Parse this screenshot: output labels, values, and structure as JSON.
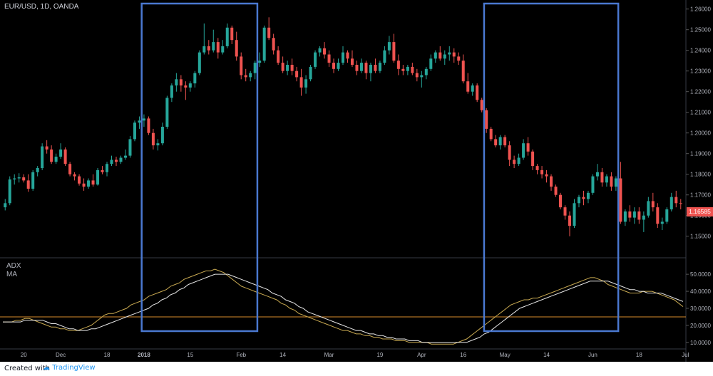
{
  "chart_data": {
    "type": "candlestick",
    "title": "EUR/USD, 1D, OANDA",
    "price_axis": {
      "range": [
        1.143,
        1.263
      ],
      "ticks": [
        "1.26000",
        "1.25000",
        "1.24000",
        "1.23000",
        "1.22000",
        "1.21000",
        "1.20000",
        "1.19000",
        "1.18000",
        "1.17000",
        "1.16000",
        "1.15000"
      ],
      "last_price": "1.16585"
    },
    "indicator": {
      "labels": [
        "ADX",
        "MA"
      ],
      "range": [
        7,
        58
      ],
      "ticks": [
        "50.0000",
        "40.0000",
        "30.0000",
        "20.0000",
        "10.0000"
      ],
      "reference_level": 25,
      "adx": [
        22,
        22,
        22,
        23,
        23,
        24,
        24,
        23,
        22,
        21,
        20,
        19,
        19,
        18,
        18,
        17,
        17,
        17,
        18,
        19,
        20,
        22,
        24,
        26,
        27,
        27,
        28,
        29,
        30,
        32,
        33,
        34,
        35,
        37,
        38,
        39,
        40,
        41,
        43,
        44,
        45,
        47,
        48,
        49,
        50,
        51,
        52,
        52,
        53,
        52,
        51,
        49,
        47,
        45,
        43,
        42,
        41,
        40,
        39,
        38,
        37,
        36,
        35,
        33,
        32,
        30,
        29,
        27,
        26,
        25,
        24,
        23,
        22,
        21,
        20,
        19,
        18,
        17,
        17,
        16,
        15,
        15,
        14,
        14,
        13,
        13,
        12,
        12,
        12,
        11,
        11,
        11,
        10,
        10,
        10,
        10,
        10,
        9,
        9,
        9,
        9,
        9,
        9,
        10,
        11,
        12,
        14,
        16,
        18,
        20,
        22,
        24,
        26,
        28,
        30,
        32,
        33,
        34,
        35,
        35,
        36,
        36,
        37,
        38,
        39,
        40,
        41,
        42,
        43,
        44,
        45,
        46,
        47,
        48,
        48,
        47,
        46,
        44,
        43,
        42,
        41,
        40,
        39,
        39,
        39,
        40,
        40,
        40,
        39,
        38,
        37,
        36,
        35,
        33,
        31
      ],
      "ma": [
        22,
        22,
        22,
        22,
        22,
        23,
        23,
        23,
        23,
        23,
        22,
        21,
        21,
        20,
        19,
        18,
        18,
        17,
        17,
        17,
        18,
        18,
        19,
        20,
        21,
        22,
        23,
        24,
        25,
        26,
        27,
        28,
        29,
        30,
        32,
        33,
        35,
        36,
        38,
        39,
        41,
        42,
        44,
        45,
        46,
        47,
        48,
        49,
        50,
        50,
        50,
        50,
        49,
        48,
        47,
        46,
        45,
        44,
        43,
        42,
        41,
        39,
        38,
        37,
        35,
        34,
        33,
        31,
        30,
        28,
        27,
        26,
        25,
        24,
        23,
        22,
        21,
        20,
        19,
        18,
        17,
        17,
        16,
        15,
        15,
        14,
        14,
        13,
        13,
        12,
        12,
        12,
        11,
        11,
        11,
        10,
        10,
        10,
        10,
        10,
        10,
        10,
        10,
        10,
        10,
        10,
        11,
        12,
        13,
        15,
        16,
        18,
        20,
        22,
        24,
        26,
        28,
        30,
        31,
        32,
        33,
        34,
        35,
        36,
        37,
        38,
        39,
        40,
        41,
        42,
        43,
        44,
        45,
        46,
        46,
        46,
        46,
        46,
        45,
        44,
        43,
        42,
        41,
        41,
        40,
        40,
        39,
        39,
        39,
        39,
        38,
        37,
        36,
        35,
        34
      ]
    },
    "x_axis": {
      "ticks": [
        "20",
        "Dec",
        "18",
        "2018",
        "15",
        "Feb",
        "14",
        "Mar",
        "19",
        "Apr",
        "16",
        "May",
        "14",
        "Jun",
        "18",
        "Jul"
      ]
    },
    "series": [
      {
        "values": [
          [
            1.164,
            1.168,
            1.1625,
            1.166
          ],
          [
            1.166,
            1.179,
            1.165,
            1.1775
          ],
          [
            1.1775,
            1.18,
            1.175,
            1.178
          ],
          [
            1.178,
            1.1805,
            1.176,
            1.1785
          ],
          [
            1.1785,
            1.18,
            1.176,
            1.177
          ],
          [
            1.177,
            1.18,
            1.1715,
            1.173
          ],
          [
            1.173,
            1.182,
            1.172,
            1.181
          ],
          [
            1.181,
            1.184,
            1.179,
            1.183
          ],
          [
            1.183,
            1.195,
            1.182,
            1.1935
          ],
          [
            1.1935,
            1.1965,
            1.19,
            1.192
          ],
          [
            1.192,
            1.194,
            1.185,
            1.186
          ],
          [
            1.186,
            1.19,
            1.185,
            1.1885
          ],
          [
            1.1885,
            1.195,
            1.1875,
            1.192
          ],
          [
            1.192,
            1.193,
            1.184,
            1.185
          ],
          [
            1.185,
            1.186,
            1.179,
            1.18
          ],
          [
            1.18,
            1.181,
            1.177,
            1.179
          ],
          [
            1.179,
            1.18,
            1.1745,
            1.1755
          ],
          [
            1.1755,
            1.178,
            1.172,
            1.174
          ],
          [
            1.174,
            1.178,
            1.173,
            1.177
          ],
          [
            1.177,
            1.18,
            1.174,
            1.175
          ],
          [
            1.175,
            1.183,
            1.1745,
            1.182
          ],
          [
            1.182,
            1.184,
            1.18,
            1.181
          ],
          [
            1.181,
            1.186,
            1.179,
            1.185
          ],
          [
            1.185,
            1.189,
            1.184,
            1.187
          ],
          [
            1.187,
            1.1885,
            1.184,
            1.186
          ],
          [
            1.186,
            1.189,
            1.185,
            1.188
          ],
          [
            1.188,
            1.192,
            1.187,
            1.189
          ],
          [
            1.189,
            1.1985,
            1.188,
            1.197
          ],
          [
            1.197,
            1.206,
            1.196,
            1.205
          ],
          [
            1.205,
            1.208,
            1.202,
            1.206
          ],
          [
            1.206,
            1.209,
            1.203,
            1.207
          ],
          [
            1.207,
            1.208,
            1.199,
            1.2
          ],
          [
            1.2,
            1.202,
            1.192,
            1.194
          ],
          [
            1.194,
            1.197,
            1.1915,
            1.195
          ],
          [
            1.195,
            1.205,
            1.194,
            1.203
          ],
          [
            1.203,
            1.218,
            1.202,
            1.217
          ],
          [
            1.217,
            1.224,
            1.215,
            1.223
          ],
          [
            1.223,
            1.229,
            1.22,
            1.226
          ],
          [
            1.226,
            1.228,
            1.22,
            1.223
          ],
          [
            1.223,
            1.225,
            1.216,
            1.222
          ],
          [
            1.222,
            1.225,
            1.22,
            1.224
          ],
          [
            1.224,
            1.23,
            1.222,
            1.229
          ],
          [
            1.229,
            1.24,
            1.228,
            1.239
          ],
          [
            1.239,
            1.253,
            1.238,
            1.242
          ],
          [
            1.242,
            1.245,
            1.238,
            1.24
          ],
          [
            1.24,
            1.25,
            1.239,
            1.244
          ],
          [
            1.244,
            1.246,
            1.236,
            1.239
          ],
          [
            1.239,
            1.245,
            1.238,
            1.242
          ],
          [
            1.242,
            1.253,
            1.241,
            1.251
          ],
          [
            1.251,
            1.252,
            1.243,
            1.245
          ],
          [
            1.245,
            1.249,
            1.235,
            1.237
          ],
          [
            1.237,
            1.239,
            1.226,
            1.228
          ],
          [
            1.228,
            1.231,
            1.225,
            1.227
          ],
          [
            1.227,
            1.23,
            1.225,
            1.229
          ],
          [
            1.229,
            1.235,
            1.226,
            1.234
          ],
          [
            1.234,
            1.239,
            1.232,
            1.235
          ],
          [
            1.235,
            1.252,
            1.234,
            1.251
          ],
          [
            1.251,
            1.256,
            1.245,
            1.246
          ],
          [
            1.246,
            1.248,
            1.238,
            1.24
          ],
          [
            1.24,
            1.242,
            1.233,
            1.234
          ],
          [
            1.234,
            1.237,
            1.229,
            1.23
          ],
          [
            1.23,
            1.235,
            1.228,
            1.233
          ],
          [
            1.233,
            1.236,
            1.228,
            1.23
          ],
          [
            1.23,
            1.232,
            1.225,
            1.227
          ],
          [
            1.227,
            1.231,
            1.218,
            1.222
          ],
          [
            1.222,
            1.228,
            1.219,
            1.226
          ],
          [
            1.226,
            1.233,
            1.225,
            1.232
          ],
          [
            1.232,
            1.24,
            1.231,
            1.239
          ],
          [
            1.239,
            1.242,
            1.237,
            1.241
          ],
          [
            1.241,
            1.244,
            1.236,
            1.238
          ],
          [
            1.238,
            1.24,
            1.232,
            1.234
          ],
          [
            1.234,
            1.236,
            1.229,
            1.231
          ],
          [
            1.231,
            1.236,
            1.23,
            1.234
          ],
          [
            1.234,
            1.242,
            1.233,
            1.239
          ],
          [
            1.239,
            1.24,
            1.234,
            1.236
          ],
          [
            1.236,
            1.24,
            1.232,
            1.233
          ],
          [
            1.233,
            1.235,
            1.228,
            1.23
          ],
          [
            1.23,
            1.236,
            1.229,
            1.234
          ],
          [
            1.234,
            1.235,
            1.226,
            1.229
          ],
          [
            1.229,
            1.234,
            1.225,
            1.233
          ],
          [
            1.233,
            1.236,
            1.229,
            1.23
          ],
          [
            1.23,
            1.235,
            1.229,
            1.234
          ],
          [
            1.234,
            1.242,
            1.233,
            1.24
          ],
          [
            1.24,
            1.247,
            1.238,
            1.244
          ],
          [
            1.244,
            1.248,
            1.234,
            1.235
          ],
          [
            1.235,
            1.238,
            1.228,
            1.231
          ],
          [
            1.231,
            1.233,
            1.228,
            1.23
          ],
          [
            1.23,
            1.233,
            1.228,
            1.232
          ],
          [
            1.232,
            1.234,
            1.228,
            1.229
          ],
          [
            1.229,
            1.231,
            1.225,
            1.227
          ],
          [
            1.227,
            1.23,
            1.222,
            1.228
          ],
          [
            1.228,
            1.232,
            1.226,
            1.231
          ],
          [
            1.231,
            1.238,
            1.23,
            1.236
          ],
          [
            1.236,
            1.24,
            1.234,
            1.239
          ],
          [
            1.239,
            1.242,
            1.235,
            1.236
          ],
          [
            1.236,
            1.24,
            1.233,
            1.238
          ],
          [
            1.238,
            1.242,
            1.235,
            1.239
          ],
          [
            1.239,
            1.241,
            1.234,
            1.237
          ],
          [
            1.237,
            1.239,
            1.233,
            1.235
          ],
          [
            1.235,
            1.238,
            1.224,
            1.225
          ],
          [
            1.225,
            1.229,
            1.219,
            1.22
          ],
          [
            1.22,
            1.224,
            1.218,
            1.223
          ],
          [
            1.223,
            1.224,
            1.215,
            1.216
          ],
          [
            1.216,
            1.217,
            1.21,
            1.211
          ],
          [
            1.211,
            1.212,
            1.2,
            1.202
          ],
          [
            1.202,
            1.203,
            1.196,
            1.197
          ],
          [
            1.197,
            1.199,
            1.193,
            1.194
          ],
          [
            1.194,
            1.199,
            1.192,
            1.198
          ],
          [
            1.198,
            1.199,
            1.193,
            1.194
          ],
          [
            1.194,
            1.196,
            1.184,
            1.187
          ],
          [
            1.187,
            1.189,
            1.183,
            1.185
          ],
          [
            1.185,
            1.19,
            1.184,
            1.188
          ],
          [
            1.188,
            1.197,
            1.187,
            1.195
          ],
          [
            1.195,
            1.198,
            1.189,
            1.191
          ],
          [
            1.191,
            1.192,
            1.182,
            1.184
          ],
          [
            1.184,
            1.185,
            1.18,
            1.182
          ],
          [
            1.182,
            1.184,
            1.178,
            1.18
          ],
          [
            1.18,
            1.182,
            1.176,
            1.179
          ],
          [
            1.179,
            1.18,
            1.172,
            1.174
          ],
          [
            1.174,
            1.175,
            1.169,
            1.17
          ],
          [
            1.17,
            1.171,
            1.163,
            1.164
          ],
          [
            1.164,
            1.165,
            1.158,
            1.16
          ],
          [
            1.16,
            1.162,
            1.15,
            1.155
          ],
          [
            1.155,
            1.168,
            1.154,
            1.166
          ],
          [
            1.166,
            1.17,
            1.164,
            1.169
          ],
          [
            1.169,
            1.172,
            1.165,
            1.168
          ],
          [
            1.168,
            1.172,
            1.166,
            1.171
          ],
          [
            1.171,
            1.18,
            1.17,
            1.179
          ],
          [
            1.179,
            1.185,
            1.177,
            1.181
          ],
          [
            1.181,
            1.183,
            1.174,
            1.176
          ],
          [
            1.176,
            1.18,
            1.174,
            1.179
          ],
          [
            1.179,
            1.181,
            1.172,
            1.174
          ],
          [
            1.174,
            1.179,
            1.172,
            1.178
          ],
          [
            1.178,
            1.186,
            1.156,
            1.157
          ],
          [
            1.157,
            1.163,
            1.155,
            1.162
          ],
          [
            1.162,
            1.165,
            1.157,
            1.159
          ],
          [
            1.159,
            1.164,
            1.156,
            1.162
          ],
          [
            1.162,
            1.164,
            1.156,
            1.158
          ],
          [
            1.158,
            1.162,
            1.152,
            1.16
          ],
          [
            1.16,
            1.169,
            1.159,
            1.167
          ],
          [
            1.167,
            1.171,
            1.162,
            1.164
          ],
          [
            1.164,
            1.166,
            1.154,
            1.156
          ],
          [
            1.156,
            1.159,
            1.153,
            1.157
          ],
          [
            1.157,
            1.164,
            1.156,
            1.163
          ],
          [
            1.163,
            1.171,
            1.162,
            1.169
          ],
          [
            1.169,
            1.172,
            1.164,
            1.166
          ],
          [
            1.166,
            1.168,
            1.163,
            1.16585
          ]
        ]
      }
    ],
    "colors": {
      "up": "#26a69a",
      "down": "#ef5350",
      "adx": "#c8a951",
      "ma": "#e6e6e6",
      "reference": "#d98b2b",
      "highlight": "#4a78d0"
    },
    "highlight_boxes": [
      {
        "from_bar": 30,
        "to_bar": 54
      },
      {
        "from_bar": 104,
        "to_bar": 132
      }
    ]
  },
  "footer": {
    "created_with": "Created with",
    "brand": "TradingView"
  }
}
